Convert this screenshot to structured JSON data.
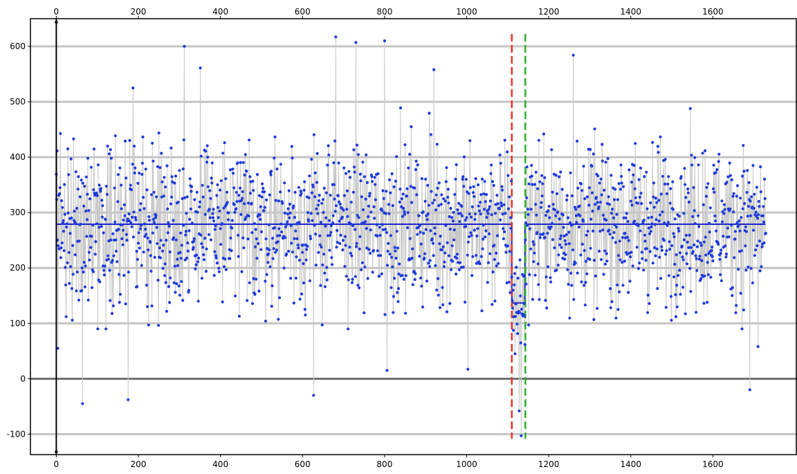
{
  "chart_data": {
    "type": "scatter",
    "title": "",
    "xlabel": "",
    "ylabel": "",
    "xlim": [
      -63,
      1805
    ],
    "ylim": [
      -137,
      650
    ],
    "x_ticks": [
      "0",
      "200",
      "400",
      "600",
      "800",
      "1000",
      "1200",
      "1400",
      "1600"
    ],
    "x_tick_values": [
      0,
      200,
      400,
      600,
      800,
      1000,
      1200,
      1400,
      1600
    ],
    "y_ticks": [
      "600",
      "500",
      "400",
      "300",
      "200",
      "100",
      "0",
      "-100"
    ],
    "y_tick_values": [
      600,
      500,
      400,
      300,
      200,
      100,
      0,
      -100
    ],
    "grid": true,
    "n_points": 1730,
    "series": [
      {
        "kind": "points",
        "color": "#1f3bdc",
        "connector_color": "#c8c8c8",
        "values_note_not_shown": ""
      },
      {
        "kind": "mean",
        "color": "#1c22c8",
        "segments": [
          {
            "x": [
              0,
              1110
            ],
            "y": 279
          },
          {
            "x": [
              1110,
              1142
            ],
            "y": 137
          },
          {
            "x": [
              1142,
              1728
            ],
            "y": 279
          }
        ]
      }
    ],
    "change_markers": [
      {
        "x": 1110,
        "color": "#e8322a",
        "style": "dashed"
      },
      {
        "x": 1143,
        "color": "#2bb02b",
        "style": "dashed"
      }
    ],
    "segment_ranges": [
      {
        "x": [
          0,
          1110
        ],
        "mean": 279,
        "low": 130,
        "high": 470
      },
      {
        "x": [
          1111,
          1142
        ],
        "mean": 137,
        "low": 40,
        "high": 260
      },
      {
        "x": [
          1143,
          1728
        ],
        "mean": 279,
        "low": 130,
        "high": 470
      }
    ],
    "highlights": [
      {
        "x": 4,
        "y": 55
      },
      {
        "x": 64,
        "y": -45
      },
      {
        "x": 175,
        "y": -38
      },
      {
        "x": 187,
        "y": 525
      },
      {
        "x": 312,
        "y": 600
      },
      {
        "x": 351,
        "y": 561
      },
      {
        "x": 627,
        "y": -30
      },
      {
        "x": 681,
        "y": 617
      },
      {
        "x": 730,
        "y": 607
      },
      {
        "x": 800,
        "y": 610
      },
      {
        "x": 806,
        "y": 15
      },
      {
        "x": 920,
        "y": 558
      },
      {
        "x": 1003,
        "y": 17
      },
      {
        "x": 1118,
        "y": 45
      },
      {
        "x": 1128,
        "y": -58
      },
      {
        "x": 1133,
        "y": -103
      },
      {
        "x": 1260,
        "y": 584
      },
      {
        "x": 1690,
        "y": -20
      },
      {
        "x": 1710,
        "y": 58
      }
    ]
  }
}
